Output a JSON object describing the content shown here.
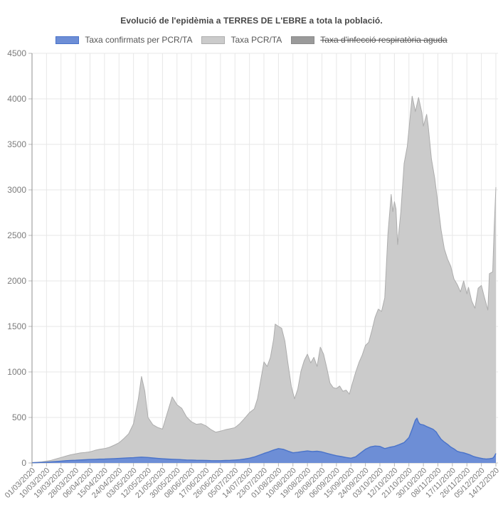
{
  "header": {
    "title": "Evolució de l'epidèmia a TERRES DE L'EBRE a tota la població."
  },
  "legend": {
    "items": [
      {
        "label": "Taxa confirmats per PCR/TA",
        "color": "#6d8ed6",
        "border": "#4a73c9",
        "disabled": false
      },
      {
        "label": "Taxa PCR/TA",
        "color": "#cbcbcb",
        "border": "#adadad",
        "disabled": false
      },
      {
        "label": "Taxa d'infecció respiratòria aguda",
        "color": "#9a9a9a",
        "border": "#8a8a8a",
        "disabled": true
      }
    ]
  },
  "colors": {
    "grid": "#e7e7e7",
    "zero_line": "#c4c4c4",
    "axis": "#8f8f8f",
    "tick": "#b8b8b8",
    "tick_text": "#7b7b7b"
  },
  "chart_data": {
    "type": "area",
    "title": "Evolució de l'epidèmia a TERRES DE L'EBRE a tota la població.",
    "xlabel": "",
    "ylabel": "",
    "ylim": [
      0,
      4500
    ],
    "grid": true,
    "legend_position": "top",
    "x_tick_interval_days": 9,
    "x_total_days": 288,
    "x_tick_labels": [
      "01/03/2020",
      "10/03/2020",
      "19/03/2020",
      "28/03/2020",
      "06/04/2020",
      "15/04/2020",
      "24/04/2020",
      "03/05/2020",
      "12/05/2020",
      "21/05/2020",
      "30/05/2020",
      "08/06/2020",
      "17/06/2020",
      "26/06/2020",
      "05/07/2020",
      "14/07/2020",
      "23/07/2020",
      "01/08/2020",
      "10/08/2020",
      "19/08/2020",
      "28/08/2020",
      "06/09/2020",
      "15/09/2020",
      "24/09/2020",
      "03/10/2020",
      "12/10/2020",
      "21/10/2020",
      "30/10/2020",
      "08/11/2020",
      "17/11/2020",
      "26/11/2020",
      "05/12/2020",
      "14/12/2020"
    ],
    "y_tick_labels": [
      "0",
      "500",
      "1000",
      "1500",
      "2000",
      "2500",
      "3000",
      "3500",
      "4000",
      "4500"
    ],
    "series": [
      {
        "name": "Taxa PCR/TA",
        "fill": "#cbcbcb",
        "stroke": "#adadad",
        "hidden": false,
        "points": [
          [
            0,
            5
          ],
          [
            3,
            8
          ],
          [
            6,
            12
          ],
          [
            9,
            20
          ],
          [
            12,
            30
          ],
          [
            15,
            45
          ],
          [
            18,
            60
          ],
          [
            21,
            75
          ],
          [
            24,
            90
          ],
          [
            27,
            100
          ],
          [
            30,
            110
          ],
          [
            33,
            115
          ],
          [
            36,
            122
          ],
          [
            39,
            138
          ],
          [
            42,
            150
          ],
          [
            45,
            158
          ],
          [
            48,
            172
          ],
          [
            51,
            195
          ],
          [
            54,
            222
          ],
          [
            57,
            268
          ],
          [
            60,
            320
          ],
          [
            63,
            430
          ],
          [
            66,
            700
          ],
          [
            68,
            950
          ],
          [
            70,
            790
          ],
          [
            72,
            500
          ],
          [
            75,
            420
          ],
          [
            78,
            390
          ],
          [
            81,
            372
          ],
          [
            84,
            550
          ],
          [
            87,
            726
          ],
          [
            90,
            640
          ],
          [
            93,
            600
          ],
          [
            96,
            505
          ],
          [
            99,
            452
          ],
          [
            102,
            425
          ],
          [
            105,
            432
          ],
          [
            108,
            408
          ],
          [
            111,
            368
          ],
          [
            114,
            338
          ],
          [
            117,
            350
          ],
          [
            120,
            365
          ],
          [
            123,
            376
          ],
          [
            126,
            388
          ],
          [
            129,
            432
          ],
          [
            132,
            490
          ],
          [
            135,
            552
          ],
          [
            138,
            594
          ],
          [
            140,
            705
          ],
          [
            142,
            910
          ],
          [
            144,
            1110
          ],
          [
            146,
            1060
          ],
          [
            148,
            1160
          ],
          [
            150,
            1360
          ],
          [
            151,
            1525
          ],
          [
            153,
            1500
          ],
          [
            155,
            1480
          ],
          [
            157,
            1340
          ],
          [
            159,
            1080
          ],
          [
            161,
            840
          ],
          [
            163,
            705
          ],
          [
            165,
            810
          ],
          [
            167,
            1010
          ],
          [
            169,
            1125
          ],
          [
            171,
            1195
          ],
          [
            173,
            1100
          ],
          [
            175,
            1160
          ],
          [
            177,
            1060
          ],
          [
            179,
            1273
          ],
          [
            181,
            1195
          ],
          [
            183,
            1045
          ],
          [
            185,
            878
          ],
          [
            187,
            828
          ],
          [
            189,
            818
          ],
          [
            191,
            845
          ],
          [
            193,
            788
          ],
          [
            195,
            800
          ],
          [
            197,
            756
          ],
          [
            199,
            880
          ],
          [
            201,
            1000
          ],
          [
            203,
            1105
          ],
          [
            205,
            1185
          ],
          [
            207,
            1290
          ],
          [
            209,
            1325
          ],
          [
            211,
            1455
          ],
          [
            213,
            1600
          ],
          [
            215,
            1690
          ],
          [
            217,
            1665
          ],
          [
            219,
            1815
          ],
          [
            221,
            2520
          ],
          [
            223,
            2950
          ],
          [
            224,
            2760
          ],
          [
            225,
            2870
          ],
          [
            226,
            2790
          ],
          [
            227,
            2400
          ],
          [
            229,
            2760
          ],
          [
            231,
            3290
          ],
          [
            233,
            3480
          ],
          [
            236,
            4030
          ],
          [
            237,
            3950
          ],
          [
            238,
            3860
          ],
          [
            240,
            4015
          ],
          [
            242,
            3850
          ],
          [
            243,
            3700
          ],
          [
            245,
            3830
          ],
          [
            246,
            3700
          ],
          [
            248,
            3340
          ],
          [
            250,
            3130
          ],
          [
            252,
            2850
          ],
          [
            254,
            2560
          ],
          [
            256,
            2350
          ],
          [
            258,
            2240
          ],
          [
            260,
            2160
          ],
          [
            262,
            2020
          ],
          [
            264,
            1960
          ],
          [
            266,
            1880
          ],
          [
            268,
            2000
          ],
          [
            270,
            1858
          ],
          [
            271,
            1930
          ],
          [
            273,
            1780
          ],
          [
            275,
            1700
          ],
          [
            277,
            1920
          ],
          [
            279,
            1950
          ],
          [
            281,
            1810
          ],
          [
            283,
            1680
          ],
          [
            284,
            2080
          ],
          [
            286,
            2100
          ],
          [
            287,
            2600
          ],
          [
            288,
            3030
          ]
        ]
      },
      {
        "name": "Taxa confirmats per PCR/TA",
        "fill": "#6d8ed6",
        "stroke": "#4a73c9",
        "hidden": false,
        "points": [
          [
            0,
            2
          ],
          [
            3,
            4
          ],
          [
            6,
            6
          ],
          [
            9,
            8
          ],
          [
            12,
            12
          ],
          [
            15,
            16
          ],
          [
            18,
            20
          ],
          [
            21,
            25
          ],
          [
            24,
            28
          ],
          [
            27,
            30
          ],
          [
            30,
            33
          ],
          [
            33,
            35
          ],
          [
            36,
            38
          ],
          [
            39,
            40
          ],
          [
            42,
            42
          ],
          [
            45,
            43
          ],
          [
            48,
            45
          ],
          [
            51,
            48
          ],
          [
            54,
            50
          ],
          [
            57,
            53
          ],
          [
            60,
            56
          ],
          [
            63,
            58
          ],
          [
            66,
            62
          ],
          [
            68,
            64
          ],
          [
            70,
            62
          ],
          [
            72,
            60
          ],
          [
            75,
            55
          ],
          [
            78,
            50
          ],
          [
            81,
            46
          ],
          [
            84,
            43
          ],
          [
            87,
            41
          ],
          [
            90,
            38
          ],
          [
            93,
            36
          ],
          [
            96,
            33
          ],
          [
            99,
            32
          ],
          [
            102,
            30
          ],
          [
            105,
            29
          ],
          [
            108,
            28
          ],
          [
            111,
            26
          ],
          [
            114,
            25
          ],
          [
            117,
            25
          ],
          [
            120,
            27
          ],
          [
            123,
            29
          ],
          [
            126,
            32
          ],
          [
            129,
            36
          ],
          [
            132,
            43
          ],
          [
            135,
            52
          ],
          [
            138,
            66
          ],
          [
            141,
            85
          ],
          [
            144,
            105
          ],
          [
            147,
            122
          ],
          [
            150,
            142
          ],
          [
            153,
            158
          ],
          [
            156,
            150
          ],
          [
            159,
            130
          ],
          [
            162,
            112
          ],
          [
            165,
            118
          ],
          [
            168,
            126
          ],
          [
            171,
            132
          ],
          [
            174,
            125
          ],
          [
            177,
            129
          ],
          [
            180,
            121
          ],
          [
            183,
            106
          ],
          [
            186,
            92
          ],
          [
            189,
            80
          ],
          [
            192,
            70
          ],
          [
            195,
            60
          ],
          [
            198,
            52
          ],
          [
            201,
            68
          ],
          [
            204,
            110
          ],
          [
            207,
            150
          ],
          [
            210,
            176
          ],
          [
            213,
            186
          ],
          [
            216,
            182
          ],
          [
            219,
            158
          ],
          [
            222,
            172
          ],
          [
            225,
            182
          ],
          [
            228,
            202
          ],
          [
            231,
            224
          ],
          [
            234,
            280
          ],
          [
            236,
            370
          ],
          [
            238,
            470
          ],
          [
            239,
            492
          ],
          [
            240,
            445
          ],
          [
            241,
            425
          ],
          [
            243,
            418
          ],
          [
            245,
            400
          ],
          [
            247,
            385
          ],
          [
            249,
            370
          ],
          [
            251,
            340
          ],
          [
            252,
            310
          ],
          [
            254,
            260
          ],
          [
            256,
            230
          ],
          [
            258,
            205
          ],
          [
            260,
            175
          ],
          [
            262,
            155
          ],
          [
            264,
            128
          ],
          [
            266,
            118
          ],
          [
            268,
            112
          ],
          [
            270,
            100
          ],
          [
            272,
            88
          ],
          [
            274,
            72
          ],
          [
            276,
            62
          ],
          [
            278,
            54
          ],
          [
            280,
            48
          ],
          [
            282,
            44
          ],
          [
            284,
            46
          ],
          [
            286,
            52
          ],
          [
            287,
            70
          ],
          [
            288,
            105
          ]
        ]
      },
      {
        "name": "Taxa d'infecció respiratòria aguda",
        "fill": "#9a9a9a",
        "stroke": "#8a8a8a",
        "hidden": true,
        "points": []
      }
    ]
  }
}
